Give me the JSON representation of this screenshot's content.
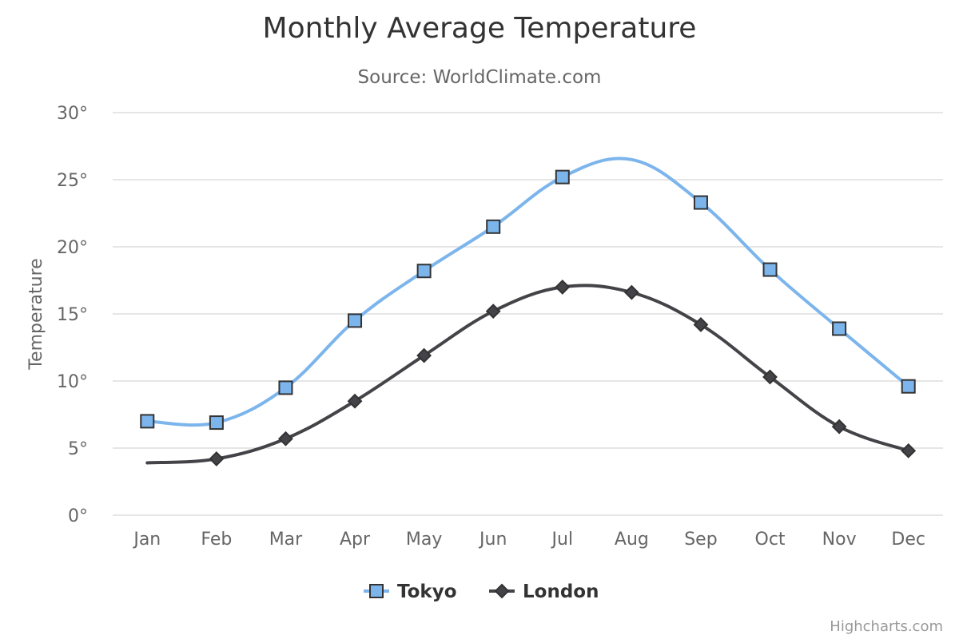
{
  "chart_data": {
    "type": "line",
    "title": "Monthly Average Temperature",
    "subtitle": "Source: WorldClimate.com",
    "ylabel": "Temperature",
    "xlabel": "",
    "categories": [
      "Jan",
      "Feb",
      "Mar",
      "Apr",
      "May",
      "Jun",
      "Jul",
      "Aug",
      "Sep",
      "Oct",
      "Nov",
      "Dec"
    ],
    "ylim": [
      0,
      30
    ],
    "yticks": [
      0,
      5,
      10,
      15,
      20,
      25,
      30
    ],
    "ytick_suffix": "°",
    "grid": true,
    "legend_position": "bottom-center",
    "series": [
      {
        "name": "Tokyo",
        "color": "#7cb5ec",
        "marker": "square",
        "values": [
          7.0,
          6.9,
          9.5,
          14.5,
          18.2,
          21.5,
          25.2,
          26.5,
          23.3,
          18.3,
          13.9,
          9.6
        ],
        "marker_visible": [
          true,
          true,
          true,
          true,
          true,
          true,
          true,
          false,
          true,
          true,
          true,
          true
        ]
      },
      {
        "name": "London",
        "color": "#434348",
        "marker": "diamond",
        "values": [
          3.9,
          4.2,
          5.7,
          8.5,
          11.9,
          15.2,
          17.0,
          16.6,
          14.2,
          10.3,
          6.6,
          4.8
        ],
        "marker_visible": [
          false,
          true,
          true,
          true,
          true,
          true,
          true,
          true,
          true,
          true,
          true,
          true
        ]
      }
    ]
  },
  "credits": "Highcharts.com"
}
